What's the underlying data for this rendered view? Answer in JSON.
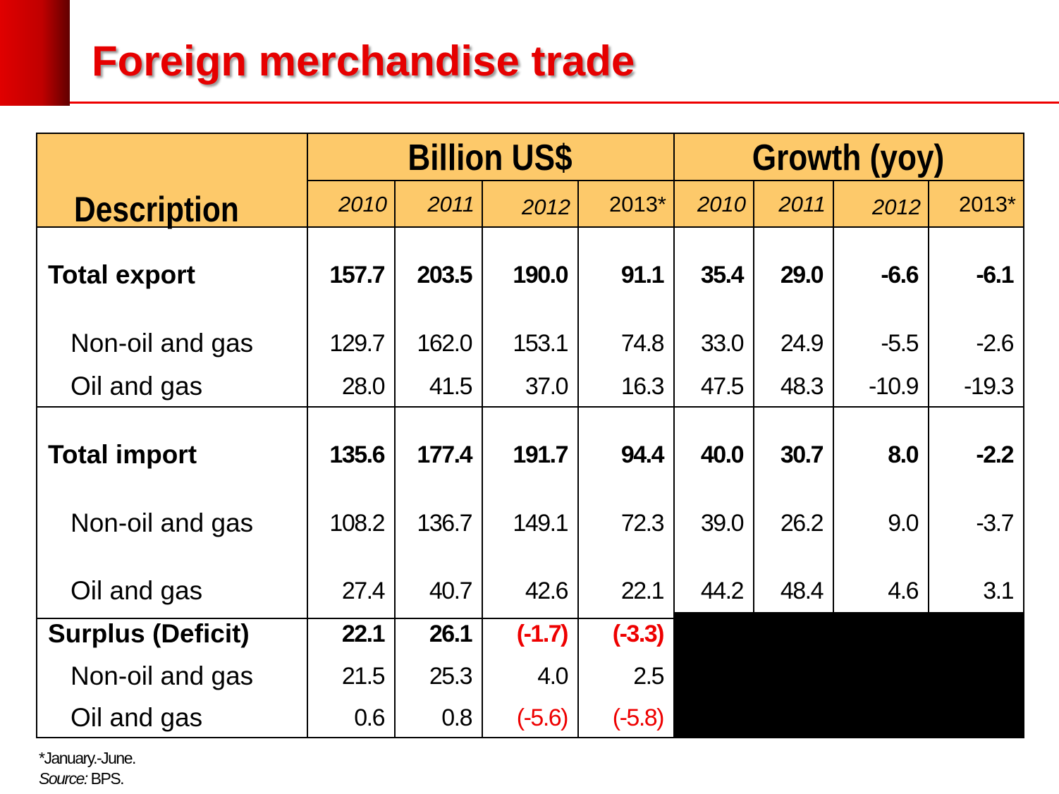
{
  "header": {
    "title": "Foreign merchandise trade"
  },
  "table": {
    "description_header": "Description",
    "groups": [
      "Billion US$",
      "Growth (yoy)"
    ],
    "years": [
      "2010",
      "2011",
      "2012",
      "2013*",
      "2010",
      "2011",
      "2012",
      "2013*"
    ],
    "sections": [
      {
        "rows": [
          [
            "Total export",
            "157.7",
            "203.5",
            "190.0",
            "91.1",
            "35.4",
            "29.0",
            "-6.6",
            "-6.1"
          ],
          [
            "Non-oil and gas",
            "129.7",
            "162.0",
            "153.1",
            "74.8",
            "33.0",
            "24.9",
            "-5.5",
            "-2.6"
          ],
          [
            "Oil and gas",
            "28.0",
            "41.5",
            "37.0",
            "16.3",
            "47.5",
            "48.3",
            "-10.9",
            "-19.3"
          ]
        ]
      },
      {
        "rows": [
          [
            "Total import",
            "135.6",
            "177.4",
            "191.7",
            "94.4",
            "40.0",
            "30.7",
            "8.0",
            "-2.2"
          ],
          [
            "Non-oil and gas",
            "108.2",
            "136.7",
            "149.1",
            "72.3",
            "39.0",
            "26.2",
            "9.0",
            "-3.7"
          ],
          [
            "Oil and gas",
            "27.4",
            "40.7",
            "42.6",
            "22.1",
            "44.2",
            "48.4",
            "4.6",
            "3.1"
          ]
        ]
      },
      {
        "rows": [
          [
            "Surplus (Deficit)",
            "22.1",
            "26.1",
            "(-1.7)",
            "(-3.3)"
          ],
          [
            "Non-oil and gas",
            "21.5",
            "25.3",
            "4.0",
            "2.5"
          ],
          [
            "Oil and gas",
            "0.6",
            "0.8",
            "(-5.6)",
            "(-5.8)"
          ]
        ]
      }
    ]
  },
  "footnote": {
    "note": "*January.-June.",
    "source_label": "Source:",
    "source": "BPS."
  }
}
